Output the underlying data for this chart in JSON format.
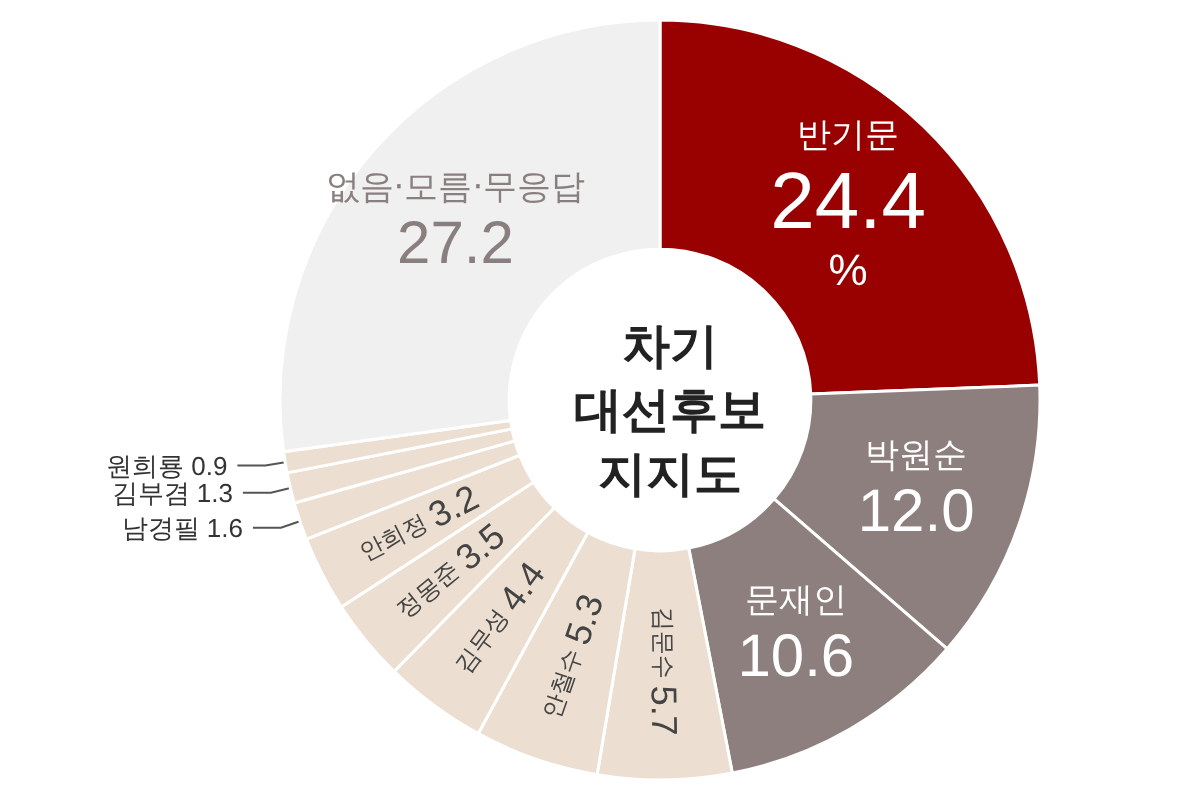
{
  "chart_data": {
    "type": "donut",
    "title": "차기 대선후보 지지도",
    "categories": [
      "반기문",
      "박원순",
      "문재인",
      "김문수",
      "안철수",
      "김무성",
      "정몽준",
      "안희정",
      "남경필",
      "김부겸",
      "원희룡",
      "없음·모름·무응답"
    ],
    "values": [
      24.4,
      12.0,
      10.6,
      5.7,
      5.3,
      4.4,
      3.5,
      3.2,
      1.6,
      1.3,
      0.9,
      27.2
    ],
    "value_labels": [
      "24.4",
      "12.0",
      "10.6",
      "5.7",
      "5.3",
      "4.4",
      "3.5",
      "3.2",
      "1.6",
      "1.3",
      "0.9",
      "27.2"
    ],
    "colors": [
      "#990000",
      "#8e7f7f",
      "#8e7f7f",
      "#ecdfd1",
      "#ecdfd1",
      "#ecdfd1",
      "#ecdfd1",
      "#ecdfd1",
      "#ecdfd1",
      "#ecdfd1",
      "#ecdfd1",
      "#f0f0f0"
    ],
    "annotations": [
      "%"
    ],
    "legend": false
  }
}
